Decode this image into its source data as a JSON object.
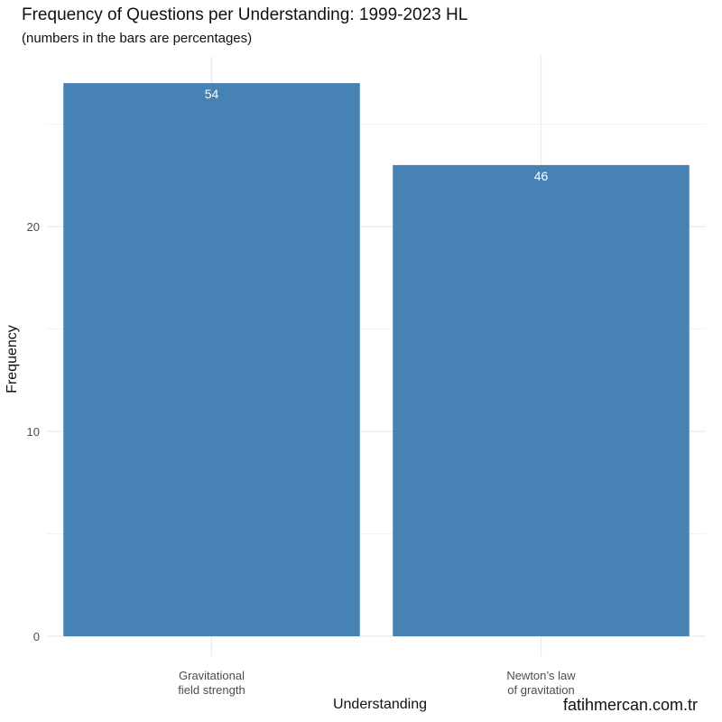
{
  "chart_data": {
    "type": "bar",
    "title": "Frequency of Questions per Understanding: 1999-2023 HL",
    "subtitle": "(numbers in the bars are percentages)",
    "xlabel": "Understanding",
    "ylabel": "Frequency",
    "categories": [
      [
        "Gravitational",
        "field strength"
      ],
      [
        "Newton’s law",
        "of gravitation"
      ]
    ],
    "values": [
      27,
      23
    ],
    "bar_labels": [
      "54",
      "46"
    ],
    "yticks": [
      0,
      10,
      20
    ],
    "ylim": [
      0,
      28
    ],
    "grid": true,
    "bar_color": "#4682b4",
    "grid_color": "#ebebeb"
  },
  "watermark": "fatihmercan.com.tr"
}
